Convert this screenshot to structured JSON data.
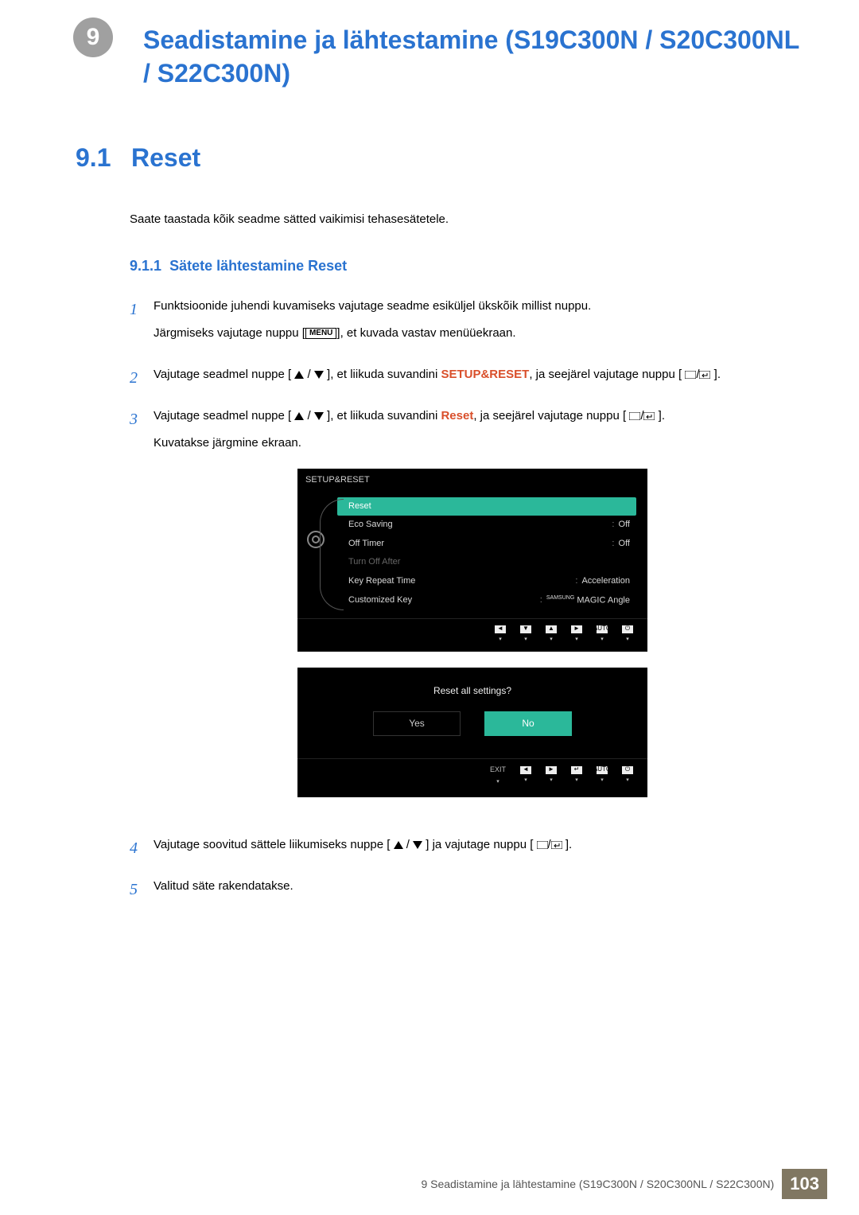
{
  "chapter": {
    "num": "9",
    "title": "Seadistamine ja lähtestamine (S19C300N / S20C300NL / S22C300N)"
  },
  "section": {
    "num": "9.1",
    "title": "Reset"
  },
  "intro": "Saate taastada kõik seadme sätted vaikimisi tehasesätetele.",
  "subsection": {
    "num": "9.1.1",
    "title": "Sätete lähtestamine Reset"
  },
  "steps": {
    "s1": {
      "p1": "Funktsioonide juhendi kuvamiseks vajutage seadme esiküljel ükskõik millist nuppu.",
      "p2a": "Järgmiseks vajutage nuppu [",
      "menu": "MENU",
      "p2b": "], et kuvada vastav menüüekraan."
    },
    "s2": {
      "a": "Vajutage seadmel nuppe [",
      "b": "], et liikuda suvandini ",
      "kw": "SETUP&RESET",
      "c": ", ja seejärel vajutage nuppu [",
      "d": "]."
    },
    "s3": {
      "a": "Vajutage seadmel nuppe [",
      "b": "], et liikuda suvandini ",
      "kw": "Reset",
      "c": ", ja seejärel vajutage nuppu [",
      "d": "].",
      "e": "Kuvatakse järgmine ekraan."
    },
    "s4": {
      "a": "Vajutage soovitud sättele liikumiseks nuppe [",
      "b": "] ja vajutage nuppu [",
      "c": "]."
    },
    "s5": "Valitud säte rakendatakse."
  },
  "osd1": {
    "title": "SETUP&RESET",
    "rows": [
      {
        "label": "Reset",
        "val": "",
        "sel": true
      },
      {
        "label": "Eco Saving",
        "val": "Off"
      },
      {
        "label": "Off Timer",
        "val": "Off"
      },
      {
        "label": "Turn Off After",
        "val": "",
        "dim": true
      },
      {
        "label": "Key Repeat Time",
        "val": "Acceleration"
      },
      {
        "label": "Customized Key",
        "val": "MAGIC Angle",
        "samsung": true
      }
    ],
    "footer": [
      "◄",
      "▼",
      "▲",
      "►",
      "AUTO",
      "⏻"
    ]
  },
  "osd2": {
    "prompt": "Reset all settings?",
    "yes": "Yes",
    "no": "No",
    "footer_exit": "EXIT",
    "footer": [
      "◄",
      "►",
      "↵",
      "AUTO",
      "⏻"
    ]
  },
  "footer": {
    "text": "9 Seadistamine ja lähtestamine (S19C300N / S20C300NL / S22C300N)",
    "page": "103"
  },
  "colors": {
    "accent_blue": "#2a73d0",
    "accent_orange": "#d94f2b",
    "osd_teal": "#2bb89a",
    "footer_bg": "#807762"
  }
}
